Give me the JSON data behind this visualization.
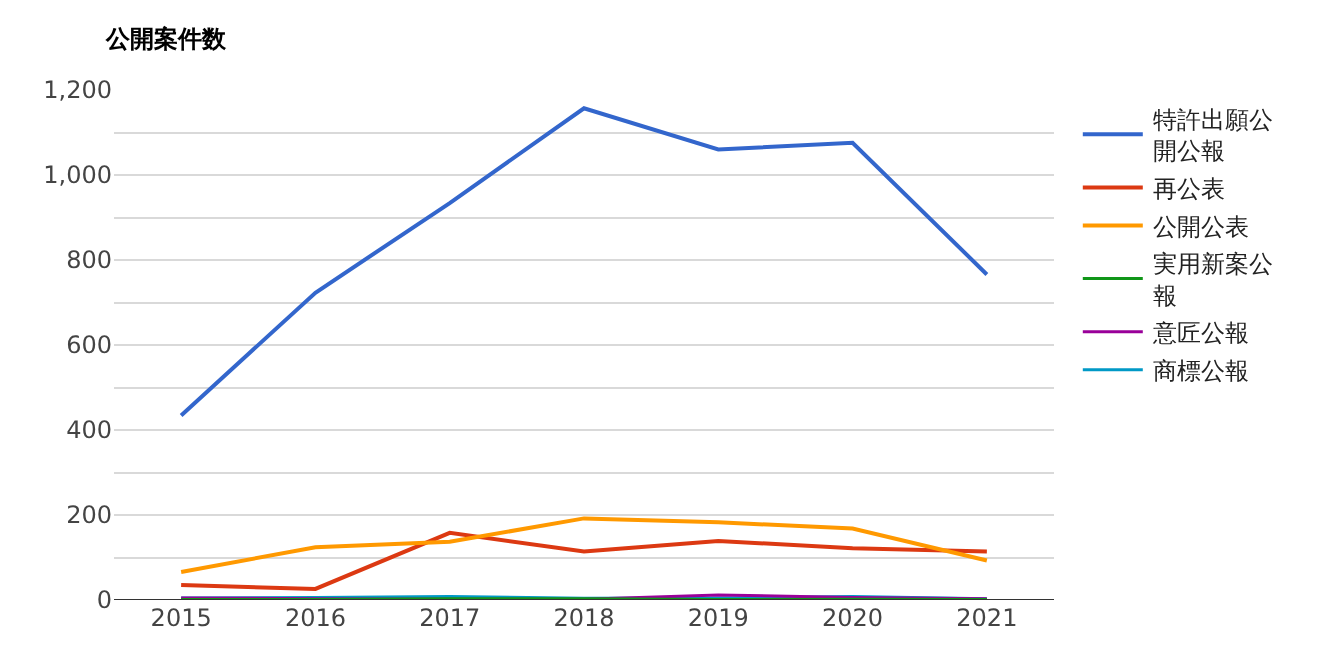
{
  "chart_data": {
    "type": "line",
    "title": "公開案件数",
    "categories": [
      "2015",
      "2016",
      "2017",
      "2018",
      "2019",
      "2020",
      "2021"
    ],
    "series": [
      {
        "name": "特許出願公開公報",
        "color": "#3366cc",
        "values": [
          434,
          723,
          934,
          1157,
          1060,
          1076,
          766
        ]
      },
      {
        "name": "再公表",
        "color": "#dc3912",
        "values": [
          35,
          26,
          158,
          114,
          139,
          122,
          114
        ]
      },
      {
        "name": "公開公表",
        "color": "#ff9900",
        "values": [
          66,
          124,
          137,
          192,
          183,
          168,
          93
        ]
      },
      {
        "name": "実用新案公報",
        "color": "#109618",
        "values": [
          1,
          1,
          3,
          3,
          1,
          2,
          1
        ]
      },
      {
        "name": "意匠公報",
        "color": "#990099",
        "values": [
          5,
          3,
          2,
          2,
          12,
          6,
          3
        ]
      },
      {
        "name": "商標公報",
        "color": "#0099c6",
        "values": [
          5,
          6,
          8,
          4,
          5,
          8,
          3
        ]
      }
    ],
    "ylim": [
      0,
      1200
    ],
    "yticks": [
      {
        "value": 0,
        "label": "0"
      },
      {
        "value": 100,
        "label": null
      },
      {
        "value": 200,
        "label": "200"
      },
      {
        "value": 300,
        "label": null
      },
      {
        "value": 400,
        "label": "400"
      },
      {
        "value": 500,
        "label": null
      },
      {
        "value": 600,
        "label": "600"
      },
      {
        "value": 700,
        "label": null
      },
      {
        "value": 800,
        "label": "800"
      },
      {
        "value": 900,
        "label": null
      },
      {
        "value": 1000,
        "label": "1,000"
      },
      {
        "value": 1100,
        "label": null
      },
      {
        "value": 1200,
        "label": "1,200"
      }
    ],
    "grid": "y",
    "legend": "right",
    "marker": "none",
    "line_style": "solid"
  }
}
